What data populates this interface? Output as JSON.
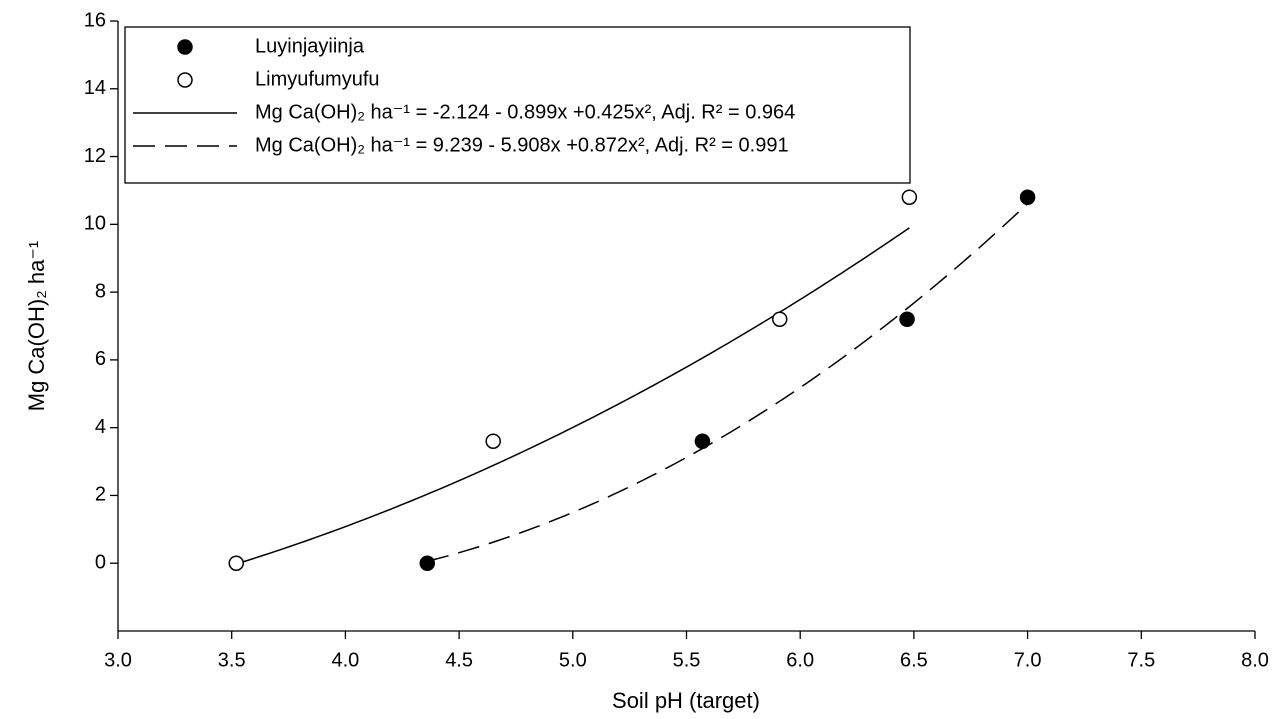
{
  "chart_data": {
    "type": "scatter",
    "x_label": "Soil pH (target)",
    "y_label": "Mg Ca(OH)₂ ha⁻¹",
    "xlim": [
      3,
      8
    ],
    "ylim": [
      -2,
      16
    ],
    "xticks": [
      {
        "value": 3,
        "label": "3.0"
      },
      {
        "value": 3.5,
        "label": "3.5"
      },
      {
        "value": 4,
        "label": "4.0"
      },
      {
        "value": 4.5,
        "label": "4.5"
      },
      {
        "value": 5,
        "label": "5.0"
      },
      {
        "value": 5.5,
        "label": "5.5"
      },
      {
        "value": 6,
        "label": "6.0"
      },
      {
        "value": 6.5,
        "label": "6.5"
      },
      {
        "value": 7,
        "label": "7.0"
      },
      {
        "value": 7.5,
        "label": "7.5"
      },
      {
        "value": 8,
        "label": "8.0"
      }
    ],
    "yticks": [
      0,
      2,
      4,
      6,
      8,
      10,
      12,
      14,
      16
    ],
    "series": [
      {
        "name": "Luyinjayiinja",
        "color": "#000000",
        "marker": "filled",
        "x": [
          4.36,
          5.57,
          6.47,
          7.0
        ],
        "values": [
          0,
          3.6,
          7.2,
          10.8
        ]
      },
      {
        "name": "Limyufumyufu",
        "color": "#000000",
        "marker": "open",
        "x": [
          3.52,
          4.65,
          5.91,
          6.48
        ],
        "values": [
          0,
          3.6,
          7.2,
          10.8
        ]
      }
    ],
    "fits": [
      {
        "name": "Mg Ca(OH)₂ ha⁻¹ = -2.124 - 0.899x +0.425x², Adj. R² = 0.964",
        "fit_of": "Limyufumyufu",
        "dash": "solid",
        "coefficients": [
          -2.124,
          -0.899,
          0.425
        ]
      },
      {
        "name": "Mg Ca(OH)₂ ha⁻¹ = 9.239 - 5.908x +0.872x², Adj. R² = 0.991",
        "fit_of": "Luyinjayiinja",
        "dash": "dashed",
        "coefficients": [
          9.239,
          -5.908,
          0.872
        ]
      }
    ]
  }
}
